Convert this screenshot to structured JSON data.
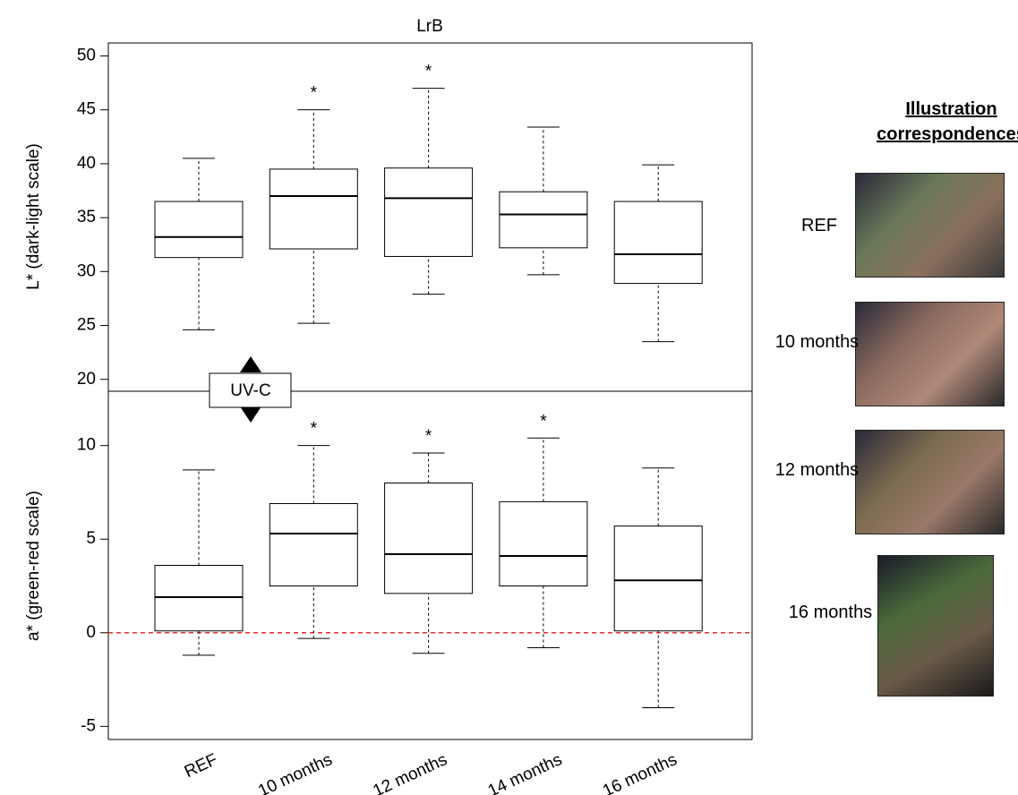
{
  "chart_data": [
    {
      "type": "box",
      "title": "LrB",
      "ylabel": "L* (dark-light scale)",
      "ylim": [
        18.9,
        51.2
      ],
      "yticks": [
        20,
        25,
        30,
        35,
        40,
        45,
        50
      ],
      "boxes": [
        {
          "whislo": 24.6,
          "q1": 31.3,
          "med": 33.2,
          "q3": 36.5,
          "whishi": 40.5
        },
        {
          "whislo": 25.2,
          "q1": 32.1,
          "med": 37.0,
          "q3": 39.5,
          "whishi": 45.0
        },
        {
          "whislo": 27.9,
          "q1": 31.4,
          "med": 36.8,
          "q3": 39.6,
          "whishi": 47.0
        },
        {
          "whislo": 29.7,
          "q1": 32.2,
          "med": 35.3,
          "q3": 37.4,
          "whishi": 43.4
        },
        {
          "whislo": 23.5,
          "q1": 28.9,
          "med": 31.6,
          "q3": 36.5,
          "whishi": 39.9
        }
      ],
      "marker_text": "*",
      "significant": [
        false,
        true,
        true,
        false,
        false
      ]
    },
    {
      "type": "box",
      "ylabel": "a* (green-red scale)",
      "annotation": "UV-C",
      "categories": [
        "REF",
        "10 months",
        "12 months",
        "14 months",
        "16 months"
      ],
      "ylim": [
        -5.7,
        12.9
      ],
      "yticks": [
        -5,
        0,
        5,
        10
      ],
      "boxes": [
        {
          "whislo": -1.2,
          "q1": 0.1,
          "med": 1.9,
          "q3": 3.6,
          "whishi": 8.7
        },
        {
          "whislo": -0.3,
          "q1": 2.5,
          "med": 5.3,
          "q3": 6.9,
          "whishi": 10.0
        },
        {
          "whislo": -1.1,
          "q1": 2.1,
          "med": 4.2,
          "q3": 8.0,
          "whishi": 9.6
        },
        {
          "whislo": -0.8,
          "q1": 2.5,
          "med": 4.1,
          "q3": 7.0,
          "whishi": 10.4
        },
        {
          "whislo": -4.0,
          "q1": 0.1,
          "med": 2.8,
          "q3": 5.7,
          "whishi": 8.8
        }
      ],
      "marker_text": "*",
      "significant": [
        false,
        true,
        true,
        true,
        false
      ],
      "hline": 0,
      "hline_color": "#e03030"
    }
  ],
  "illustration": {
    "title": "Illustration correspondences",
    "labels": [
      "REF",
      "10 months",
      "12 months",
      "16 months"
    ]
  }
}
